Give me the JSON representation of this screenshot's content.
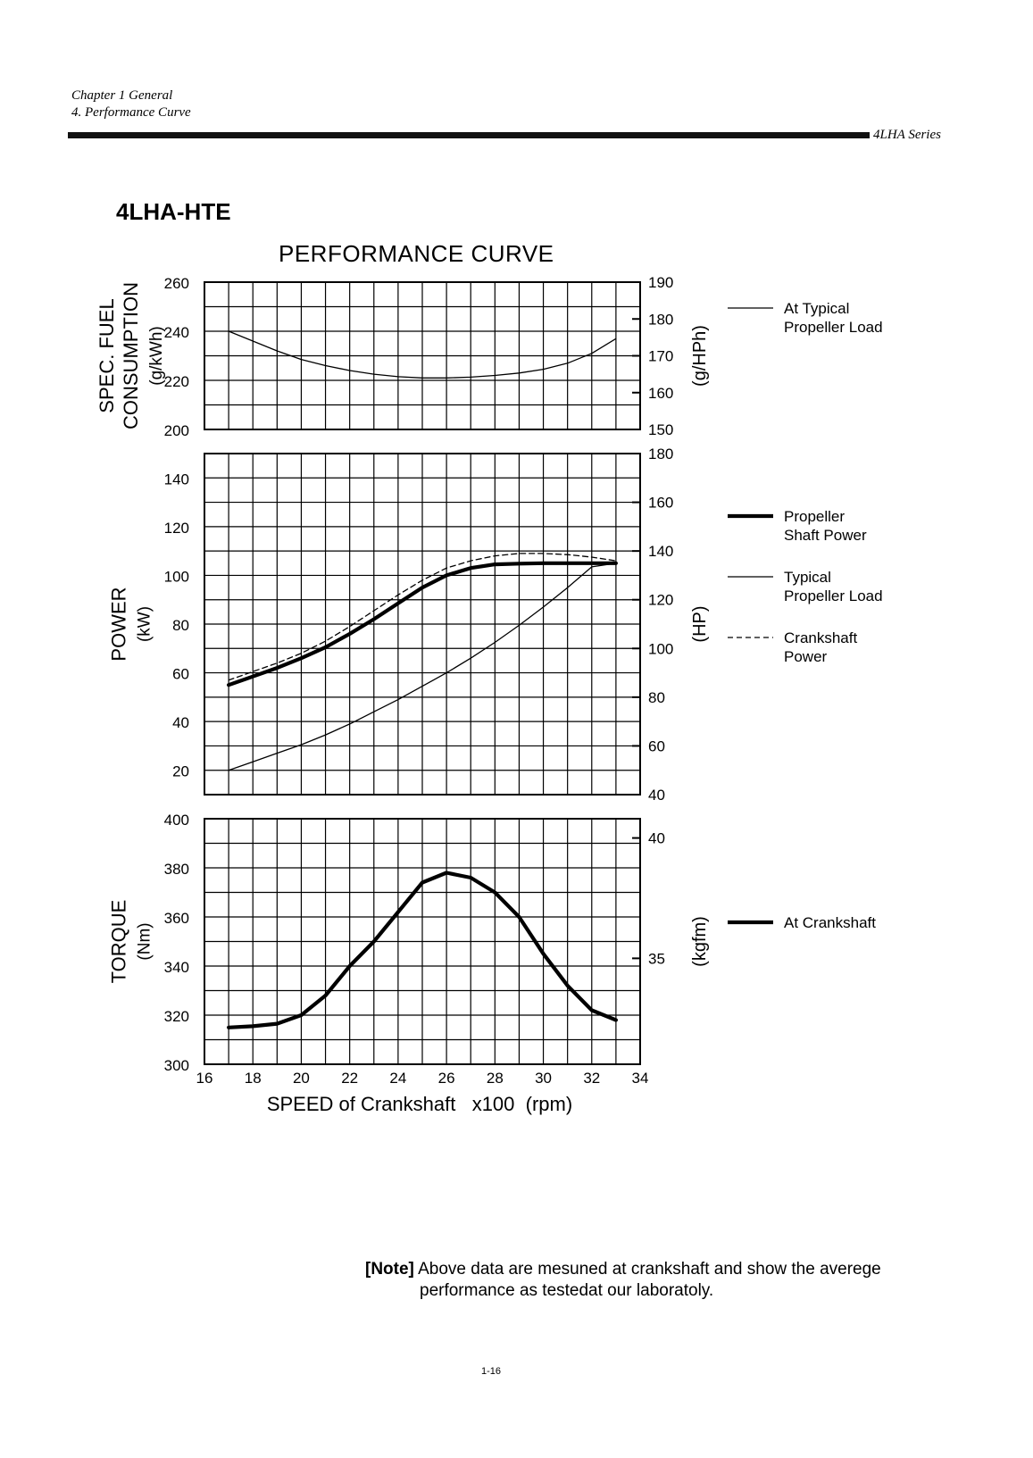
{
  "header": {
    "chapter": "Chapter 1 General",
    "section": "4. Performance Curve",
    "series": "4LHA Series"
  },
  "model": "4LHA-HTE",
  "note": {
    "label": "[Note]",
    "line1": "Above data are mesuned at crankshaft and show the averege",
    "line2": "performance as testedat our laboratoly."
  },
  "page_number": "1-16",
  "colors": {
    "ink": "#000000",
    "paper": "#ffffff"
  },
  "chart_data": {
    "type": "line",
    "title": "PERFORMANCE CURVE",
    "xlabel": "SPEED of Crankshaft   x100  (rpm)",
    "xlim": [
      16,
      34
    ],
    "xticks": [
      "16",
      "18",
      "20",
      "22",
      "24",
      "26",
      "28",
      "30",
      "32",
      "34"
    ],
    "panels": [
      {
        "id": "fuel",
        "left_label_lines": [
          "SPEC. FUEL",
          "CONSUMPTION",
          "(g/kWh)"
        ],
        "right_label": "(g/HPh)",
        "ylim": [
          200,
          260
        ],
        "yticks": [
          "200",
          "220",
          "240",
          "260"
        ],
        "right_scale": {
          "lim": [
            150,
            190
          ],
          "ticks": [
            "150",
            "160",
            "170",
            "180",
            "190"
          ]
        },
        "series": [
          {
            "name": "At Typical Propeller Load",
            "style": "thin",
            "x": [
              17,
              18,
              19,
              20,
              21,
              22,
              23,
              24,
              25,
              26,
              27,
              28,
              29,
              30,
              31,
              32,
              33
            ],
            "y": [
              240,
              236,
              232,
              228.5,
              226,
              224,
              222.5,
              221.5,
              221,
              221,
              221.3,
              222,
              223,
              224.5,
              227,
              231,
              237
            ]
          }
        ],
        "legend": [
          {
            "style": "thin",
            "line1": "At Typical",
            "line2": "Propeller Load"
          }
        ]
      },
      {
        "id": "power",
        "left_label_lines": [
          "POWER",
          "(kW)"
        ],
        "right_label": "(HP)",
        "ylim": [
          10,
          150
        ],
        "yticks": [
          "20",
          "40",
          "60",
          "80",
          "100",
          "120",
          "140"
        ],
        "right_scale": {
          "lim": [
            40,
            180
          ],
          "ticks": [
            "40",
            "60",
            "80",
            "100",
            "120",
            "140",
            "160",
            "180"
          ]
        },
        "series": [
          {
            "name": "Propeller Shaft Power",
            "style": "thick",
            "x": [
              17,
              18,
              19,
              20,
              21,
              22,
              23,
              24,
              25,
              26,
              27,
              28,
              29,
              30,
              31,
              32,
              33
            ],
            "y": [
              55,
              58.5,
              62,
              66,
              70.5,
              76,
              82,
              88.5,
              95,
              100,
              103,
              104.5,
              104.8,
              105,
              105,
              105,
              105
            ]
          },
          {
            "name": "Typical Propeller Load",
            "style": "thin",
            "x": [
              17,
              18,
              19,
              20,
              21,
              22,
              23,
              24,
              25,
              26,
              27,
              28,
              29,
              30,
              31,
              32,
              33
            ],
            "y": [
              20,
              23.5,
              27,
              30.5,
              34.5,
              39,
              44,
              49,
              54.5,
              60,
              66,
              72.5,
              79.5,
              87,
              95,
              103.5,
              105
            ]
          },
          {
            "name": "Crankshaft Power",
            "style": "dashed",
            "x": [
              17,
              18,
              19,
              20,
              21,
              22,
              23,
              24,
              25,
              26,
              27,
              28,
              29,
              30,
              31,
              32,
              33
            ],
            "y": [
              57,
              60.5,
              64,
              68,
              73,
              79,
              85.5,
              92,
              98,
              103,
              106,
              108,
              109,
              109,
              108.5,
              107.5,
              106
            ]
          }
        ],
        "legend": [
          {
            "style": "thick",
            "line1": "Propeller",
            "line2": "Shaft Power"
          },
          {
            "style": "thin",
            "line1": "Typical",
            "line2": "Propeller Load"
          },
          {
            "style": "dashed",
            "line1": "Crankshaft",
            "line2": "Power"
          }
        ]
      },
      {
        "id": "torque",
        "left_label_lines": [
          "TORQUE",
          "(Nm)"
        ],
        "right_label": "(kgfm)",
        "ylim": [
          300,
          400
        ],
        "yticks": [
          "300",
          "320",
          "340",
          "360",
          "380",
          "400"
        ],
        "right_scale": {
          "lim": [
            30.6,
            40.8
          ],
          "ticks": [
            "35",
            "40"
          ]
        },
        "series": [
          {
            "name": "At Crankshaft",
            "style": "thick",
            "x": [
              17,
              18,
              19,
              20,
              21,
              22,
              23,
              24,
              25,
              26,
              27,
              28,
              29,
              30,
              31,
              32,
              33
            ],
            "y": [
              315,
              315.5,
              316.5,
              320,
              328,
              340,
              350,
              362,
              374,
              378,
              376,
              370,
              360,
              345,
              332,
              322,
              318
            ]
          }
        ],
        "legend": [
          {
            "style": "thick",
            "line1": "At Crankshaft",
            "line2": ""
          }
        ]
      }
    ]
  }
}
